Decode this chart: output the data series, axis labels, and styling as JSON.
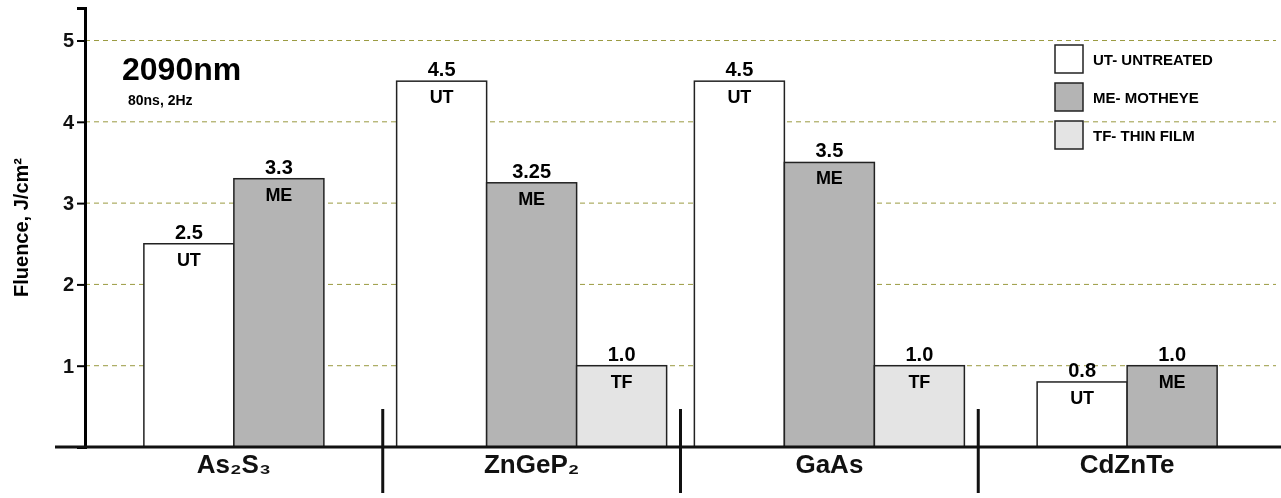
{
  "chart_data": {
    "type": "bar",
    "title": "2090nm",
    "subtitle": "80ns, 2Hz",
    "ylabel": "Fluence, J/cm²",
    "categories": [
      "As₂S₃",
      "ZnGeP₂",
      "GaAs",
      "CdZnTe"
    ],
    "series": [
      {
        "name": "UT- UNTREATED",
        "color": "#ffffff",
        "values": [
          2.5,
          4.5,
          4.5,
          0.8
        ],
        "value_labels": [
          "2.5",
          "4.5",
          "4.5",
          "0.8"
        ]
      },
      {
        "name": "ME- MOTHEYE",
        "color": "#b4b4b4",
        "values": [
          3.3,
          3.25,
          3.5,
          1.0
        ],
        "value_labels": [
          "3.3",
          "3.25",
          "3.5",
          "1.0"
        ]
      },
      {
        "name": "TF- THIN FILM",
        "color": "#e4e4e4",
        "values": [
          null,
          1.0,
          1.0,
          null
        ],
        "value_labels": [
          null,
          "1.0",
          "1.0",
          null
        ]
      }
    ],
    "annotations": [
      "UT",
      "ME",
      "UT",
      "ME",
      "TF",
      "UT",
      "ME",
      "TF",
      "UT",
      "ME"
    ],
    "ylim": [
      0,
      5.4
    ],
    "yticks": [
      1,
      2,
      3,
      4,
      5
    ],
    "grid": "y",
    "legend": "top right"
  }
}
